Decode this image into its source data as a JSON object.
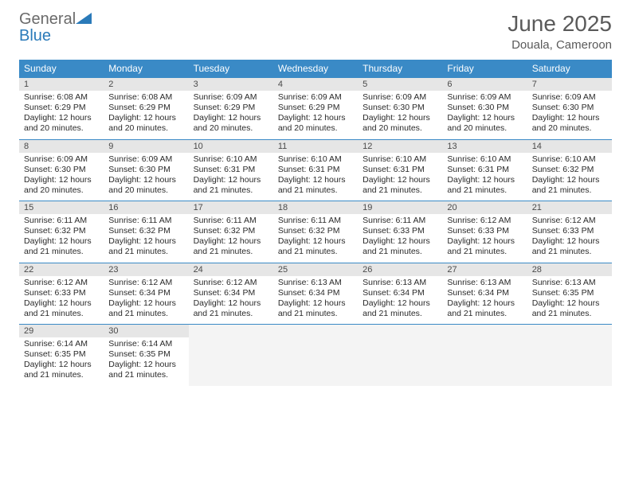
{
  "brand": {
    "name1": "General",
    "name2": "Blue"
  },
  "title": "June 2025",
  "location": "Douala, Cameroon",
  "colors": {
    "header_bg": "#3a8ac6",
    "header_text": "#ffffff",
    "daynum_bg": "#e6e6e6",
    "border": "#3a8ac6",
    "empty_bg": "#f4f4f4",
    "title_color": "#5a5a5a",
    "logo_gray": "#6a6a6a",
    "logo_blue": "#2a7ab9"
  },
  "day_names": [
    "Sunday",
    "Monday",
    "Tuesday",
    "Wednesday",
    "Thursday",
    "Friday",
    "Saturday"
  ],
  "weeks": [
    [
      {
        "n": "1",
        "sr": "6:08 AM",
        "ss": "6:29 PM",
        "dl": "12 hours and 20 minutes."
      },
      {
        "n": "2",
        "sr": "6:08 AM",
        "ss": "6:29 PM",
        "dl": "12 hours and 20 minutes."
      },
      {
        "n": "3",
        "sr": "6:09 AM",
        "ss": "6:29 PM",
        "dl": "12 hours and 20 minutes."
      },
      {
        "n": "4",
        "sr": "6:09 AM",
        "ss": "6:29 PM",
        "dl": "12 hours and 20 minutes."
      },
      {
        "n": "5",
        "sr": "6:09 AM",
        "ss": "6:30 PM",
        "dl": "12 hours and 20 minutes."
      },
      {
        "n": "6",
        "sr": "6:09 AM",
        "ss": "6:30 PM",
        "dl": "12 hours and 20 minutes."
      },
      {
        "n": "7",
        "sr": "6:09 AM",
        "ss": "6:30 PM",
        "dl": "12 hours and 20 minutes."
      }
    ],
    [
      {
        "n": "8",
        "sr": "6:09 AM",
        "ss": "6:30 PM",
        "dl": "12 hours and 20 minutes."
      },
      {
        "n": "9",
        "sr": "6:09 AM",
        "ss": "6:30 PM",
        "dl": "12 hours and 20 minutes."
      },
      {
        "n": "10",
        "sr": "6:10 AM",
        "ss": "6:31 PM",
        "dl": "12 hours and 21 minutes."
      },
      {
        "n": "11",
        "sr": "6:10 AM",
        "ss": "6:31 PM",
        "dl": "12 hours and 21 minutes."
      },
      {
        "n": "12",
        "sr": "6:10 AM",
        "ss": "6:31 PM",
        "dl": "12 hours and 21 minutes."
      },
      {
        "n": "13",
        "sr": "6:10 AM",
        "ss": "6:31 PM",
        "dl": "12 hours and 21 minutes."
      },
      {
        "n": "14",
        "sr": "6:10 AM",
        "ss": "6:32 PM",
        "dl": "12 hours and 21 minutes."
      }
    ],
    [
      {
        "n": "15",
        "sr": "6:11 AM",
        "ss": "6:32 PM",
        "dl": "12 hours and 21 minutes."
      },
      {
        "n": "16",
        "sr": "6:11 AM",
        "ss": "6:32 PM",
        "dl": "12 hours and 21 minutes."
      },
      {
        "n": "17",
        "sr": "6:11 AM",
        "ss": "6:32 PM",
        "dl": "12 hours and 21 minutes."
      },
      {
        "n": "18",
        "sr": "6:11 AM",
        "ss": "6:32 PM",
        "dl": "12 hours and 21 minutes."
      },
      {
        "n": "19",
        "sr": "6:11 AM",
        "ss": "6:33 PM",
        "dl": "12 hours and 21 minutes."
      },
      {
        "n": "20",
        "sr": "6:12 AM",
        "ss": "6:33 PM",
        "dl": "12 hours and 21 minutes."
      },
      {
        "n": "21",
        "sr": "6:12 AM",
        "ss": "6:33 PM",
        "dl": "12 hours and 21 minutes."
      }
    ],
    [
      {
        "n": "22",
        "sr": "6:12 AM",
        "ss": "6:33 PM",
        "dl": "12 hours and 21 minutes."
      },
      {
        "n": "23",
        "sr": "6:12 AM",
        "ss": "6:34 PM",
        "dl": "12 hours and 21 minutes."
      },
      {
        "n": "24",
        "sr": "6:12 AM",
        "ss": "6:34 PM",
        "dl": "12 hours and 21 minutes."
      },
      {
        "n": "25",
        "sr": "6:13 AM",
        "ss": "6:34 PM",
        "dl": "12 hours and 21 minutes."
      },
      {
        "n": "26",
        "sr": "6:13 AM",
        "ss": "6:34 PM",
        "dl": "12 hours and 21 minutes."
      },
      {
        "n": "27",
        "sr": "6:13 AM",
        "ss": "6:34 PM",
        "dl": "12 hours and 21 minutes."
      },
      {
        "n": "28",
        "sr": "6:13 AM",
        "ss": "6:35 PM",
        "dl": "12 hours and 21 minutes."
      }
    ],
    [
      {
        "n": "29",
        "sr": "6:14 AM",
        "ss": "6:35 PM",
        "dl": "12 hours and 21 minutes."
      },
      {
        "n": "30",
        "sr": "6:14 AM",
        "ss": "6:35 PM",
        "dl": "12 hours and 21 minutes."
      },
      null,
      null,
      null,
      null,
      null
    ]
  ],
  "labels": {
    "sunrise": "Sunrise:",
    "sunset": "Sunset:",
    "daylight": "Daylight:"
  }
}
